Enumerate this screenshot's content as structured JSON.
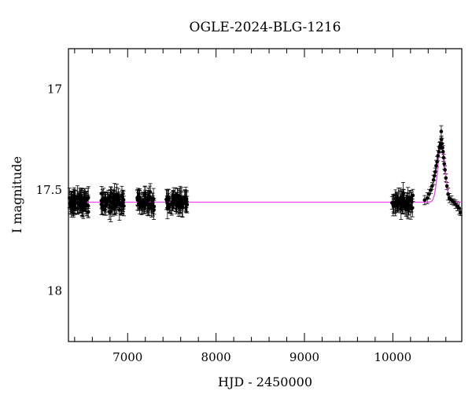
{
  "chart_data": {
    "type": "scatter",
    "title": "OGLE-2024-BLG-1216",
    "xlabel": "HJD - 2450000",
    "ylabel": "I magnitude",
    "xlim": [
      6330,
      10780
    ],
    "ylim": [
      18.25,
      16.8
    ],
    "y_inverted": true,
    "grid": false,
    "x_ticks": [
      7000,
      8000,
      9000,
      10000
    ],
    "x_tick_labels": [
      "7000",
      "8000",
      "9000",
      "10000"
    ],
    "y_ticks": [
      17,
      17.5,
      18
    ],
    "y_tick_labels": [
      "17",
      "17.5",
      "18"
    ],
    "baseline_magnitude": 17.56,
    "model_color": "#ee44ee",
    "point_color": "#000000",
    "seasons": [
      {
        "start": 6340,
        "end": 6560,
        "n": 70
      },
      {
        "start": 6700,
        "end": 6960,
        "n": 65
      },
      {
        "start": 7100,
        "end": 7300,
        "n": 50
      },
      {
        "start": 7430,
        "end": 7680,
        "n": 55
      },
      {
        "start": 9990,
        "end": 10230,
        "n": 55
      }
    ],
    "event": {
      "t_peak": 10550,
      "peak_magnitude": 17.26,
      "width_days": 55,
      "points": [
        [
          10360,
          17.55
        ],
        [
          10390,
          17.54
        ],
        [
          10410,
          17.52
        ],
        [
          10430,
          17.5
        ],
        [
          10445,
          17.48
        ],
        [
          10460,
          17.45
        ],
        [
          10470,
          17.43
        ],
        [
          10480,
          17.41
        ],
        [
          10490,
          17.38
        ],
        [
          10500,
          17.36
        ],
        [
          10510,
          17.33
        ],
        [
          10520,
          17.31
        ],
        [
          10528,
          17.29
        ],
        [
          10535,
          17.28
        ],
        [
          10542,
          17.27
        ],
        [
          10548,
          17.21
        ],
        [
          10550,
          17.25
        ],
        [
          10556,
          17.27
        ],
        [
          10562,
          17.29
        ],
        [
          10568,
          17.31
        ],
        [
          10575,
          17.34
        ],
        [
          10582,
          17.37
        ],
        [
          10590,
          17.4
        ],
        [
          10600,
          17.44
        ],
        [
          10612,
          17.48
        ],
        [
          10625,
          17.52
        ],
        [
          10640,
          17.54
        ],
        [
          10665,
          17.55
        ],
        [
          10690,
          17.56
        ],
        [
          10710,
          17.57
        ],
        [
          10730,
          17.58
        ],
        [
          10750,
          17.59
        ],
        [
          10765,
          17.61
        ]
      ]
    }
  }
}
